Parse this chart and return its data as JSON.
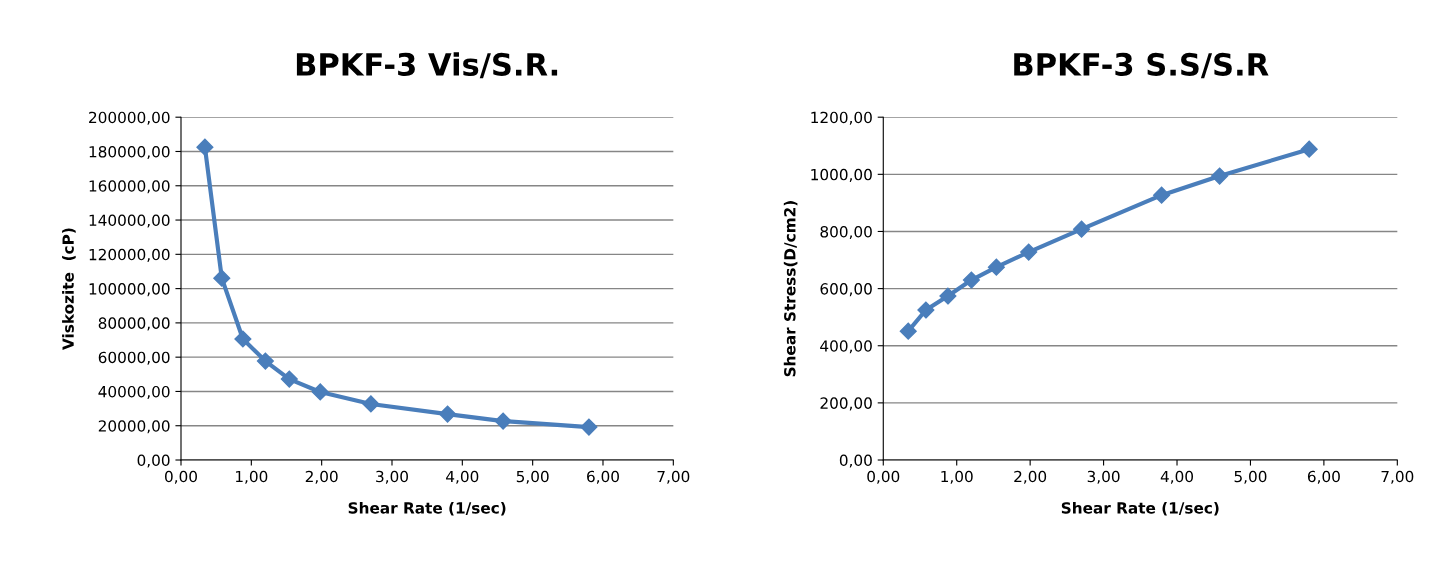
{
  "chart_data": [
    {
      "type": "line",
      "title": "BPKF-3 Vis/S.R.",
      "xlabel": "Shear Rate (1/sec)",
      "ylabel": "Viskozite  (cP)",
      "marker": "diamond",
      "line_style": "solid",
      "grid": "y",
      "legend": false,
      "x": [
        0.34,
        0.58,
        0.88,
        1.2,
        1.54,
        1.98,
        2.7,
        3.79,
        4.58,
        5.8
      ],
      "series": [
        {
          "color": "#4a7ebb",
          "values": [
            182500,
            106100,
            70600,
            57700,
            47200,
            39700,
            32700,
            26800,
            22700,
            19200
          ]
        }
      ],
      "xlim": [
        0,
        7
      ],
      "xticks": [
        {
          "value": 0,
          "label": "0,00"
        },
        {
          "value": 1,
          "label": "1,00"
        },
        {
          "value": 2,
          "label": "2,00"
        },
        {
          "value": 3,
          "label": "3,00"
        },
        {
          "value": 4,
          "label": "4,00"
        },
        {
          "value": 5,
          "label": "5,00"
        },
        {
          "value": 6,
          "label": "6,00"
        },
        {
          "value": 7,
          "label": "7,00"
        }
      ],
      "ylim": [
        0,
        200000
      ],
      "yticks": [
        {
          "value": 0,
          "label": "0,00"
        },
        {
          "value": 20000,
          "label": "20000,00"
        },
        {
          "value": 40000,
          "label": "40000,00"
        },
        {
          "value": 60000,
          "label": "60000,00"
        },
        {
          "value": 80000,
          "label": "80000,00"
        },
        {
          "value": 100000,
          "label": "100000,00"
        },
        {
          "value": 120000,
          "label": "120000,00"
        },
        {
          "value": 140000,
          "label": "140000,00"
        },
        {
          "value": 160000,
          "label": "160000,00"
        },
        {
          "value": 180000,
          "label": "180000,00"
        },
        {
          "value": 200000,
          "label": "200000,00"
        }
      ]
    },
    {
      "type": "line",
      "title": "BPKF-3 S.S/S.R",
      "xlabel": "Shear Rate (1/sec)",
      "ylabel": "Shear Stress(D/cm2)",
      "marker": "diamond",
      "line_style": "solid",
      "grid": "y",
      "legend": false,
      "x": [
        0.34,
        0.58,
        0.88,
        1.2,
        1.54,
        1.98,
        2.7,
        3.79,
        4.58,
        5.8
      ],
      "series": [
        {
          "color": "#4a7ebb",
          "values": [
            451,
            525,
            574,
            630,
            675,
            728,
            808,
            927,
            994,
            1088
          ]
        }
      ],
      "xlim": [
        0,
        7
      ],
      "xticks": [
        {
          "value": 0,
          "label": "0,00"
        },
        {
          "value": 1,
          "label": "1,00"
        },
        {
          "value": 2,
          "label": "2,00"
        },
        {
          "value": 3,
          "label": "3,00"
        },
        {
          "value": 4,
          "label": "4,00"
        },
        {
          "value": 5,
          "label": "5,00"
        },
        {
          "value": 6,
          "label": "6,00"
        },
        {
          "value": 7,
          "label": "7,00"
        }
      ],
      "ylim": [
        0,
        1200
      ],
      "yticks": [
        {
          "value": 0,
          "label": "0,00"
        },
        {
          "value": 200,
          "label": "200,00"
        },
        {
          "value": 400,
          "label": "400,00"
        },
        {
          "value": 600,
          "label": "600,00"
        },
        {
          "value": 800,
          "label": "800,00"
        },
        {
          "value": 1000,
          "label": "1000,00"
        },
        {
          "value": 1200,
          "label": "1200,00"
        }
      ]
    }
  ]
}
